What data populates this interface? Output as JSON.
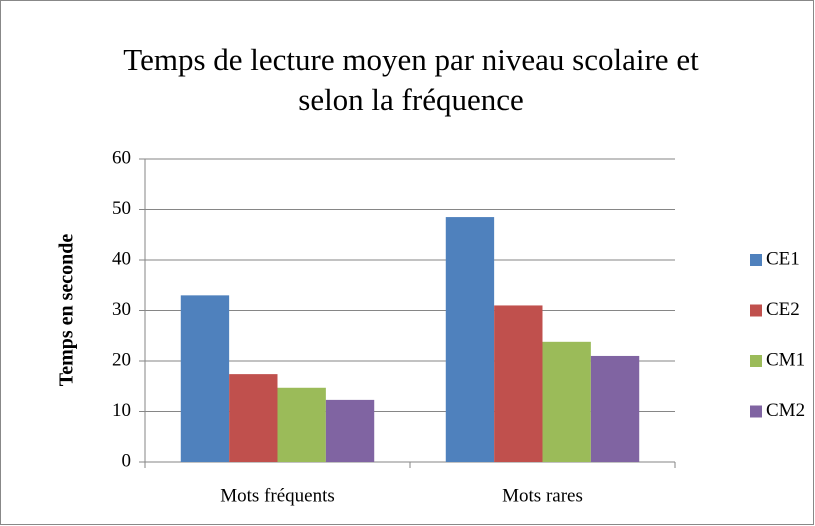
{
  "chart_data": {
    "type": "bar",
    "title": "Temps de lecture moyen par niveau scolaire et selon la fréquence",
    "y_label": "Temps en seconde",
    "categories": [
      "Mots fréquents",
      "Mots rares"
    ],
    "series": [
      {
        "name": "CE1",
        "color": "#4f81bd",
        "values": [
          33,
          48.5
        ]
      },
      {
        "name": "CE2",
        "color": "#c0504d",
        "values": [
          17.4,
          31
        ]
      },
      {
        "name": "CM1",
        "color": "#9bbb59",
        "values": [
          14.7,
          23.8
        ]
      },
      {
        "name": "CM2",
        "color": "#8064a2",
        "values": [
          12.3,
          21
        ]
      }
    ],
    "ylim": [
      0,
      60
    ],
    "yticks": [
      0,
      10,
      20,
      30,
      40,
      50,
      60
    ],
    "grid": true,
    "legend": "right"
  }
}
